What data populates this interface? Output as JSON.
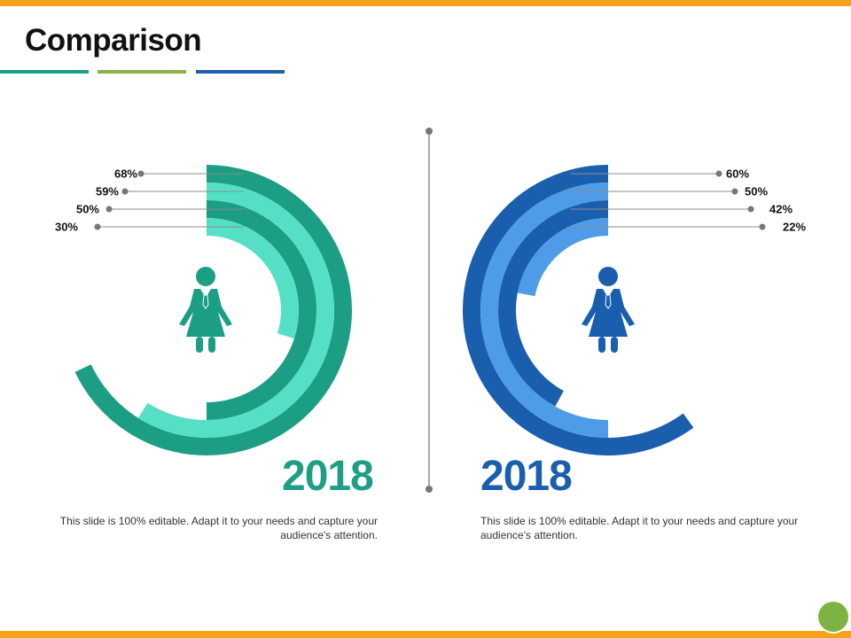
{
  "slide": {
    "title": "Comparison",
    "accent_colors": [
      "#1F9E85",
      "#8DB04A",
      "#1F5FA8"
    ],
    "frame_color": "#F5A21B",
    "corner_circle_color": "#7CB342"
  },
  "chart_data": [
    {
      "type": "radial-bar",
      "title": "2018",
      "series": [
        {
          "name": "ring-1",
          "value": 68,
          "label": "68%",
          "color": "#1C9E84"
        },
        {
          "name": "ring-2",
          "value": 59,
          "label": "59%",
          "color": "#55E0C6"
        },
        {
          "name": "ring-3",
          "value": 50,
          "label": "50%",
          "color": "#1C9E84"
        },
        {
          "name": "ring-4",
          "value": 30,
          "label": "30%",
          "color": "#55E0C6"
        }
      ],
      "caption": "This slide is 100% editable. Adapt it to your needs and capture your audience's attention.",
      "title_color": "#1F9E85",
      "icon": "businesswoman-icon",
      "icon_color": "#1C9E84",
      "label_side": "left"
    },
    {
      "type": "radial-bar",
      "title": "2018",
      "series": [
        {
          "name": "ring-1",
          "value": 60,
          "label": "60%",
          "color": "#1A5FAE"
        },
        {
          "name": "ring-2",
          "value": 50,
          "label": "50%",
          "color": "#4E9CE8"
        },
        {
          "name": "ring-3",
          "value": 42,
          "label": "42%",
          "color": "#1A5FAE"
        },
        {
          "name": "ring-4",
          "value": 22,
          "label": "22%",
          "color": "#4E9CE8"
        }
      ],
      "caption": "This slide is 100% editable. Adapt it to your needs and capture your audience's attention.",
      "title_color": "#1A5FAE",
      "icon": "businesswoman-icon",
      "icon_color": "#1A5FAE",
      "label_side": "right"
    }
  ]
}
